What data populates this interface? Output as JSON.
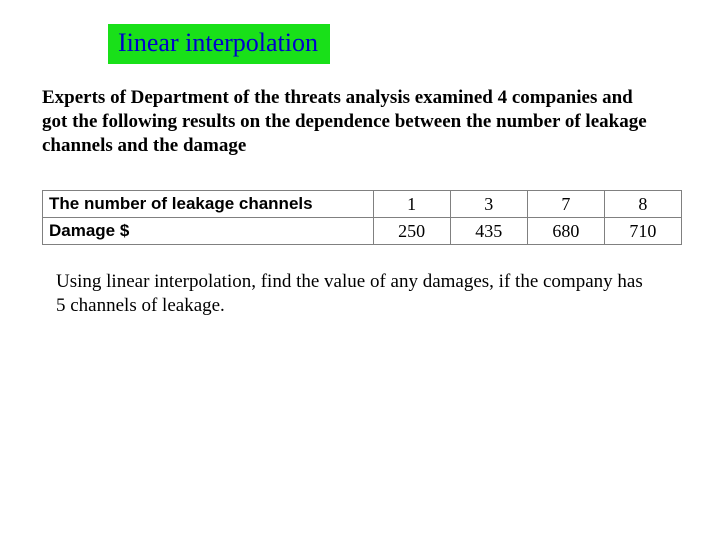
{
  "title": {
    "text": "Iinear interpolation",
    "bg_color": "#19e019",
    "text_color": "#0000cc",
    "fontsize": 26
  },
  "paragraph1": "Experts of Department of the threats analysis examined 4 companies and got the following results on the dependence between the number of leakage channels and the damage",
  "table": {
    "row_headers": [
      "The number of leakage channels",
      "Damage $"
    ],
    "columns": 4,
    "rows": [
      [
        "1",
        "3",
        "7",
        "8"
      ],
      [
        "250",
        "435",
        "680",
        "710"
      ]
    ],
    "border_color": "#808080",
    "header_font": "Arial",
    "value_font": "Times New Roman",
    "header_fontsize": 17,
    "value_fontsize": 18
  },
  "paragraph2": "Using linear interpolation, find the value of any damages, if the company has 5 channels of leakage.",
  "body_fontsize": 19,
  "background_color": "#ffffff"
}
